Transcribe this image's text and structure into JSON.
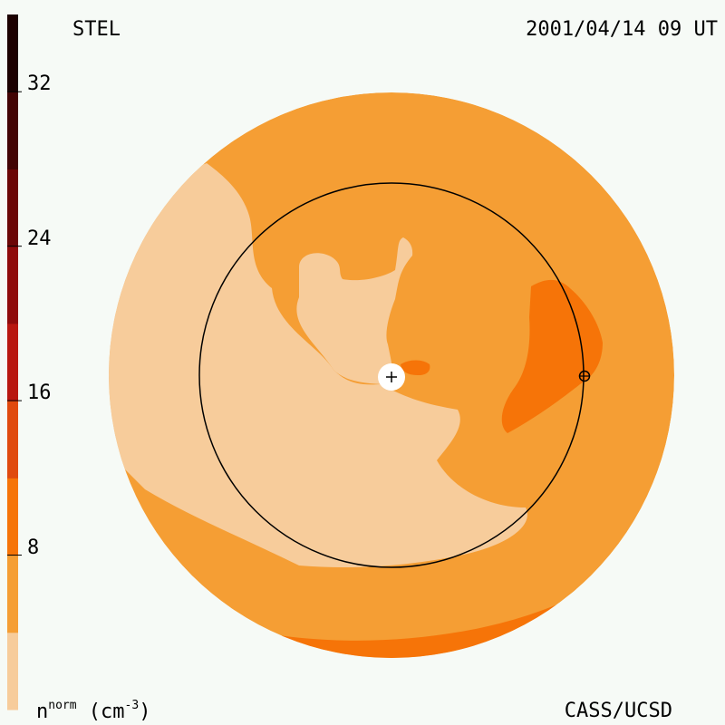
{
  "header": {
    "observatory": "STEL",
    "timestamp": "2001/04/14 09 UT"
  },
  "footer": {
    "credit": "CASS/UCSD"
  },
  "colorbar": {
    "unit_base": "n",
    "unit_sup": "norm",
    "unit_tail": " (cm",
    "unit_exp": "-3",
    "unit_close": ")",
    "tick_labels": [
      "8",
      "16",
      "24",
      "32"
    ],
    "levels": [
      {
        "from": 0,
        "to": 4,
        "color": "#f7cc9b"
      },
      {
        "from": 4,
        "to": 8,
        "color": "#f59e34"
      },
      {
        "from": 8,
        "to": 12,
        "color": "#f67408"
      },
      {
        "from": 12,
        "to": 16,
        "color": "#e04a0e"
      },
      {
        "from": 16,
        "to": 20,
        "color": "#b81710"
      },
      {
        "from": 20,
        "to": 24,
        "color": "#8f0b0b"
      },
      {
        "from": 24,
        "to": 28,
        "color": "#6b0606"
      },
      {
        "from": 28,
        "to": 32,
        "color": "#420404"
      },
      {
        "from": 32,
        "to": 36,
        "color": "#1c0101"
      }
    ]
  },
  "chart_data": {
    "type": "heatmap",
    "title": "",
    "observatory": "STEL",
    "timestamp": "2001/04/14 09 UT",
    "variable": "normalized density",
    "unit": "cm^-3",
    "scale_range": [
      0,
      36
    ],
    "scale_ticks": [
      8,
      16,
      24,
      32
    ],
    "regions": [
      {
        "name": "outer-disk",
        "level_range": [
          4,
          8
        ]
      },
      {
        "name": "left-sector",
        "level_range": [
          0,
          4
        ]
      },
      {
        "name": "inner-pale-region",
        "level_range": [
          0,
          4
        ]
      },
      {
        "name": "right-enhancement",
        "level_range": [
          8,
          12
        ]
      },
      {
        "name": "lower-rim-band",
        "level_range": [
          8,
          12
        ]
      }
    ],
    "markers": [
      "sun-center",
      "earth"
    ]
  }
}
